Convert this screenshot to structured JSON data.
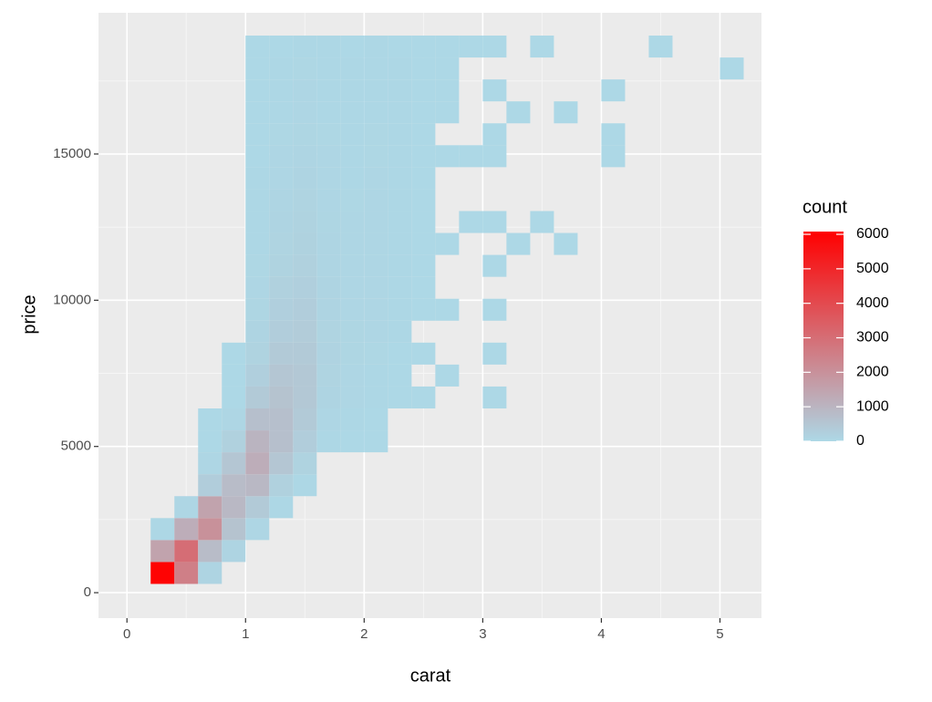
{
  "chart_data": {
    "type": "heatmap",
    "x_label": "carat",
    "y_label": "price",
    "legend_title": "count",
    "xlim": [
      -0.24,
      5.35
    ],
    "ylim": [
      -870,
      19830
    ],
    "xticks": [
      0,
      1,
      2,
      3,
      4,
      5
    ],
    "yticks": [
      0,
      5000,
      10000,
      15000
    ],
    "grid": true,
    "background": "#ebebeb",
    "colorlim": [
      0,
      6080
    ],
    "colorticks": [
      0,
      1000,
      2000,
      3000,
      4000,
      5000,
      6000
    ],
    "low_color": "#add8e6",
    "high_color": "#ff0000",
    "legend_position": "right",
    "xbins": [
      0.2,
      0.4,
      0.6,
      0.8,
      1.0,
      1.2,
      1.4,
      1.6,
      1.8,
      2.0,
      2.2,
      2.4,
      2.6,
      2.8,
      3.0,
      3.2,
      3.4,
      3.6,
      3.8,
      4.0,
      4.2,
      4.4,
      4.6,
      4.8,
      5.0,
      5.2
    ],
    "ybins": [
      300,
      1050,
      1800,
      2550,
      3300,
      4050,
      4800,
      5550,
      6300,
      7050,
      7800,
      8550,
      9300,
      10050,
      10800,
      11550,
      12300,
      13050,
      13800,
      14550,
      15300,
      16050,
      16800,
      17550,
      18300,
      19050
    ],
    "counts": [
      [
        6000,
        1500,
        20,
        null,
        null,
        null,
        null,
        null,
        null,
        null,
        null,
        null,
        null,
        null,
        null,
        null,
        null,
        null,
        null,
        null,
        null,
        null,
        null,
        null,
        null
      ],
      [
        2500,
        3000,
        1200,
        50,
        null,
        null,
        null,
        null,
        null,
        null,
        null,
        null,
        null,
        null,
        null,
        null,
        null,
        null,
        null,
        null,
        null,
        null,
        null,
        null,
        null
      ],
      [
        100,
        800,
        2000,
        1500,
        300,
        50,
        10,
        3,
        null,
        null,
        null,
        null,
        null,
        null,
        null,
        null,
        null,
        null,
        null,
        null,
        null,
        null,
        null,
        null,
        null
      ],
      [
        null,
        100,
        600,
        900,
        800,
        500,
        200,
        50,
        10,
        5,
        2,
        null,
        null,
        null,
        null,
        null,
        null,
        null,
        null,
        null,
        null,
        null,
        null,
        null,
        null
      ],
      [
        null,
        null,
        50,
        400,
        900,
        1200,
        1000,
        700,
        400,
        250,
        150,
        100,
        70,
        50,
        40,
        30,
        25,
        20,
        15,
        12,
        10,
        8,
        6,
        4,
        3
      ],
      [
        null,
        null,
        null,
        20,
        200,
        500,
        700,
        700,
        600,
        500,
        400,
        300,
        250,
        200,
        150,
        120,
        100,
        80,
        60,
        50,
        40,
        30,
        25,
        15,
        8
      ],
      [
        null,
        null,
        null,
        null,
        30,
        150,
        300,
        400,
        450,
        450,
        400,
        350,
        300,
        250,
        200,
        180,
        150,
        120,
        100,
        90,
        70,
        60,
        50,
        40,
        20
      ],
      [
        null,
        null,
        null,
        null,
        null,
        null,
        20,
        60,
        100,
        120,
        130,
        120,
        110,
        100,
        90,
        80,
        70,
        60,
        50,
        45,
        40,
        35,
        30,
        25,
        15
      ],
      [
        null,
        null,
        null,
        null,
        null,
        null,
        5,
        30,
        50,
        60,
        70,
        70,
        65,
        60,
        55,
        50,
        45,
        40,
        35,
        30,
        30,
        25,
        20,
        15,
        10
      ],
      [
        null,
        null,
        null,
        null,
        null,
        null,
        2,
        10,
        20,
        30,
        40,
        50,
        55,
        60,
        60,
        60,
        55,
        50,
        45,
        40,
        40,
        35,
        30,
        25,
        20
      ],
      [
        null,
        null,
        null,
        null,
        null,
        null,
        null,
        null,
        3,
        8,
        12,
        15,
        18,
        20,
        25,
        25,
        25,
        25,
        22,
        20,
        20,
        18,
        15,
        15,
        10
      ],
      [
        null,
        null,
        null,
        null,
        null,
        null,
        null,
        null,
        1,
        null,
        2,
        null,
        3,
        4,
        5,
        5,
        6,
        6,
        6,
        6,
        5,
        5,
        4,
        4,
        3
      ],
      [
        null,
        null,
        null,
        null,
        null,
        null,
        null,
        null,
        null,
        1,
        null,
        null,
        1,
        null,
        null,
        1,
        null,
        null,
        null,
        1,
        null,
        1,
        1,
        2,
        1
      ],
      [
        null,
        null,
        null,
        null,
        null,
        null,
        null,
        null,
        null,
        null,
        null,
        null,
        null,
        null,
        null,
        null,
        1,
        null,
        null,
        1,
        null,
        null,
        null,
        null,
        1
      ],
      [
        null,
        null,
        null,
        null,
        null,
        null,
        null,
        null,
        1,
        null,
        1,
        null,
        2,
        null,
        1,
        null,
        1,
        null,
        null,
        2,
        2,
        null,
        1,
        null,
        2
      ],
      [
        null,
        null,
        null,
        null,
        null,
        null,
        null,
        null,
        null,
        null,
        null,
        null,
        null,
        null,
        null,
        1,
        null,
        null,
        null,
        null,
        null,
        1,
        null,
        null,
        null
      ],
      [
        null,
        null,
        null,
        null,
        null,
        null,
        null,
        null,
        null,
        null,
        null,
        null,
        null,
        null,
        null,
        null,
        1,
        null,
        null,
        null,
        null,
        null,
        null,
        null,
        1
      ],
      [
        null,
        null,
        null,
        null,
        null,
        null,
        null,
        null,
        null,
        null,
        null,
        null,
        null,
        null,
        null,
        1,
        null,
        null,
        null,
        null,
        null,
        1,
        null,
        null,
        null
      ],
      [
        null,
        null,
        null,
        null,
        null,
        null,
        null,
        null,
        null,
        null,
        null,
        null,
        null,
        null,
        null,
        null,
        null,
        null,
        null,
        null,
        null,
        null,
        null,
        null,
        null
      ],
      [
        null,
        null,
        null,
        null,
        null,
        null,
        null,
        null,
        null,
        null,
        null,
        null,
        null,
        null,
        null,
        null,
        null,
        null,
        null,
        1,
        1,
        null,
        1,
        null,
        null
      ],
      [
        null,
        null,
        null,
        null,
        null,
        null,
        null,
        null,
        null,
        null,
        null,
        null,
        null,
        null,
        null,
        null,
        null,
        null,
        null,
        null,
        null,
        null,
        null,
        null,
        null
      ],
      [
        null,
        null,
        null,
        null,
        null,
        null,
        null,
        null,
        null,
        null,
        null,
        null,
        null,
        null,
        null,
        null,
        null,
        null,
        null,
        null,
        null,
        null,
        null,
        null,
        1
      ],
      [
        null,
        null,
        null,
        null,
        null,
        null,
        null,
        null,
        null,
        null,
        null,
        null,
        null,
        null,
        null,
        null,
        null,
        null,
        null,
        null,
        null,
        null,
        null,
        null,
        null
      ],
      [
        null,
        null,
        null,
        null,
        null,
        null,
        null,
        null,
        null,
        null,
        null,
        null,
        null,
        null,
        null,
        null,
        null,
        null,
        null,
        null,
        null,
        null,
        null,
        null,
        null
      ],
      [
        null,
        null,
        null,
        null,
        null,
        null,
        null,
        null,
        null,
        null,
        null,
        null,
        null,
        null,
        null,
        null,
        null,
        null,
        null,
        null,
        null,
        null,
        null,
        1,
        null
      ]
    ]
  }
}
